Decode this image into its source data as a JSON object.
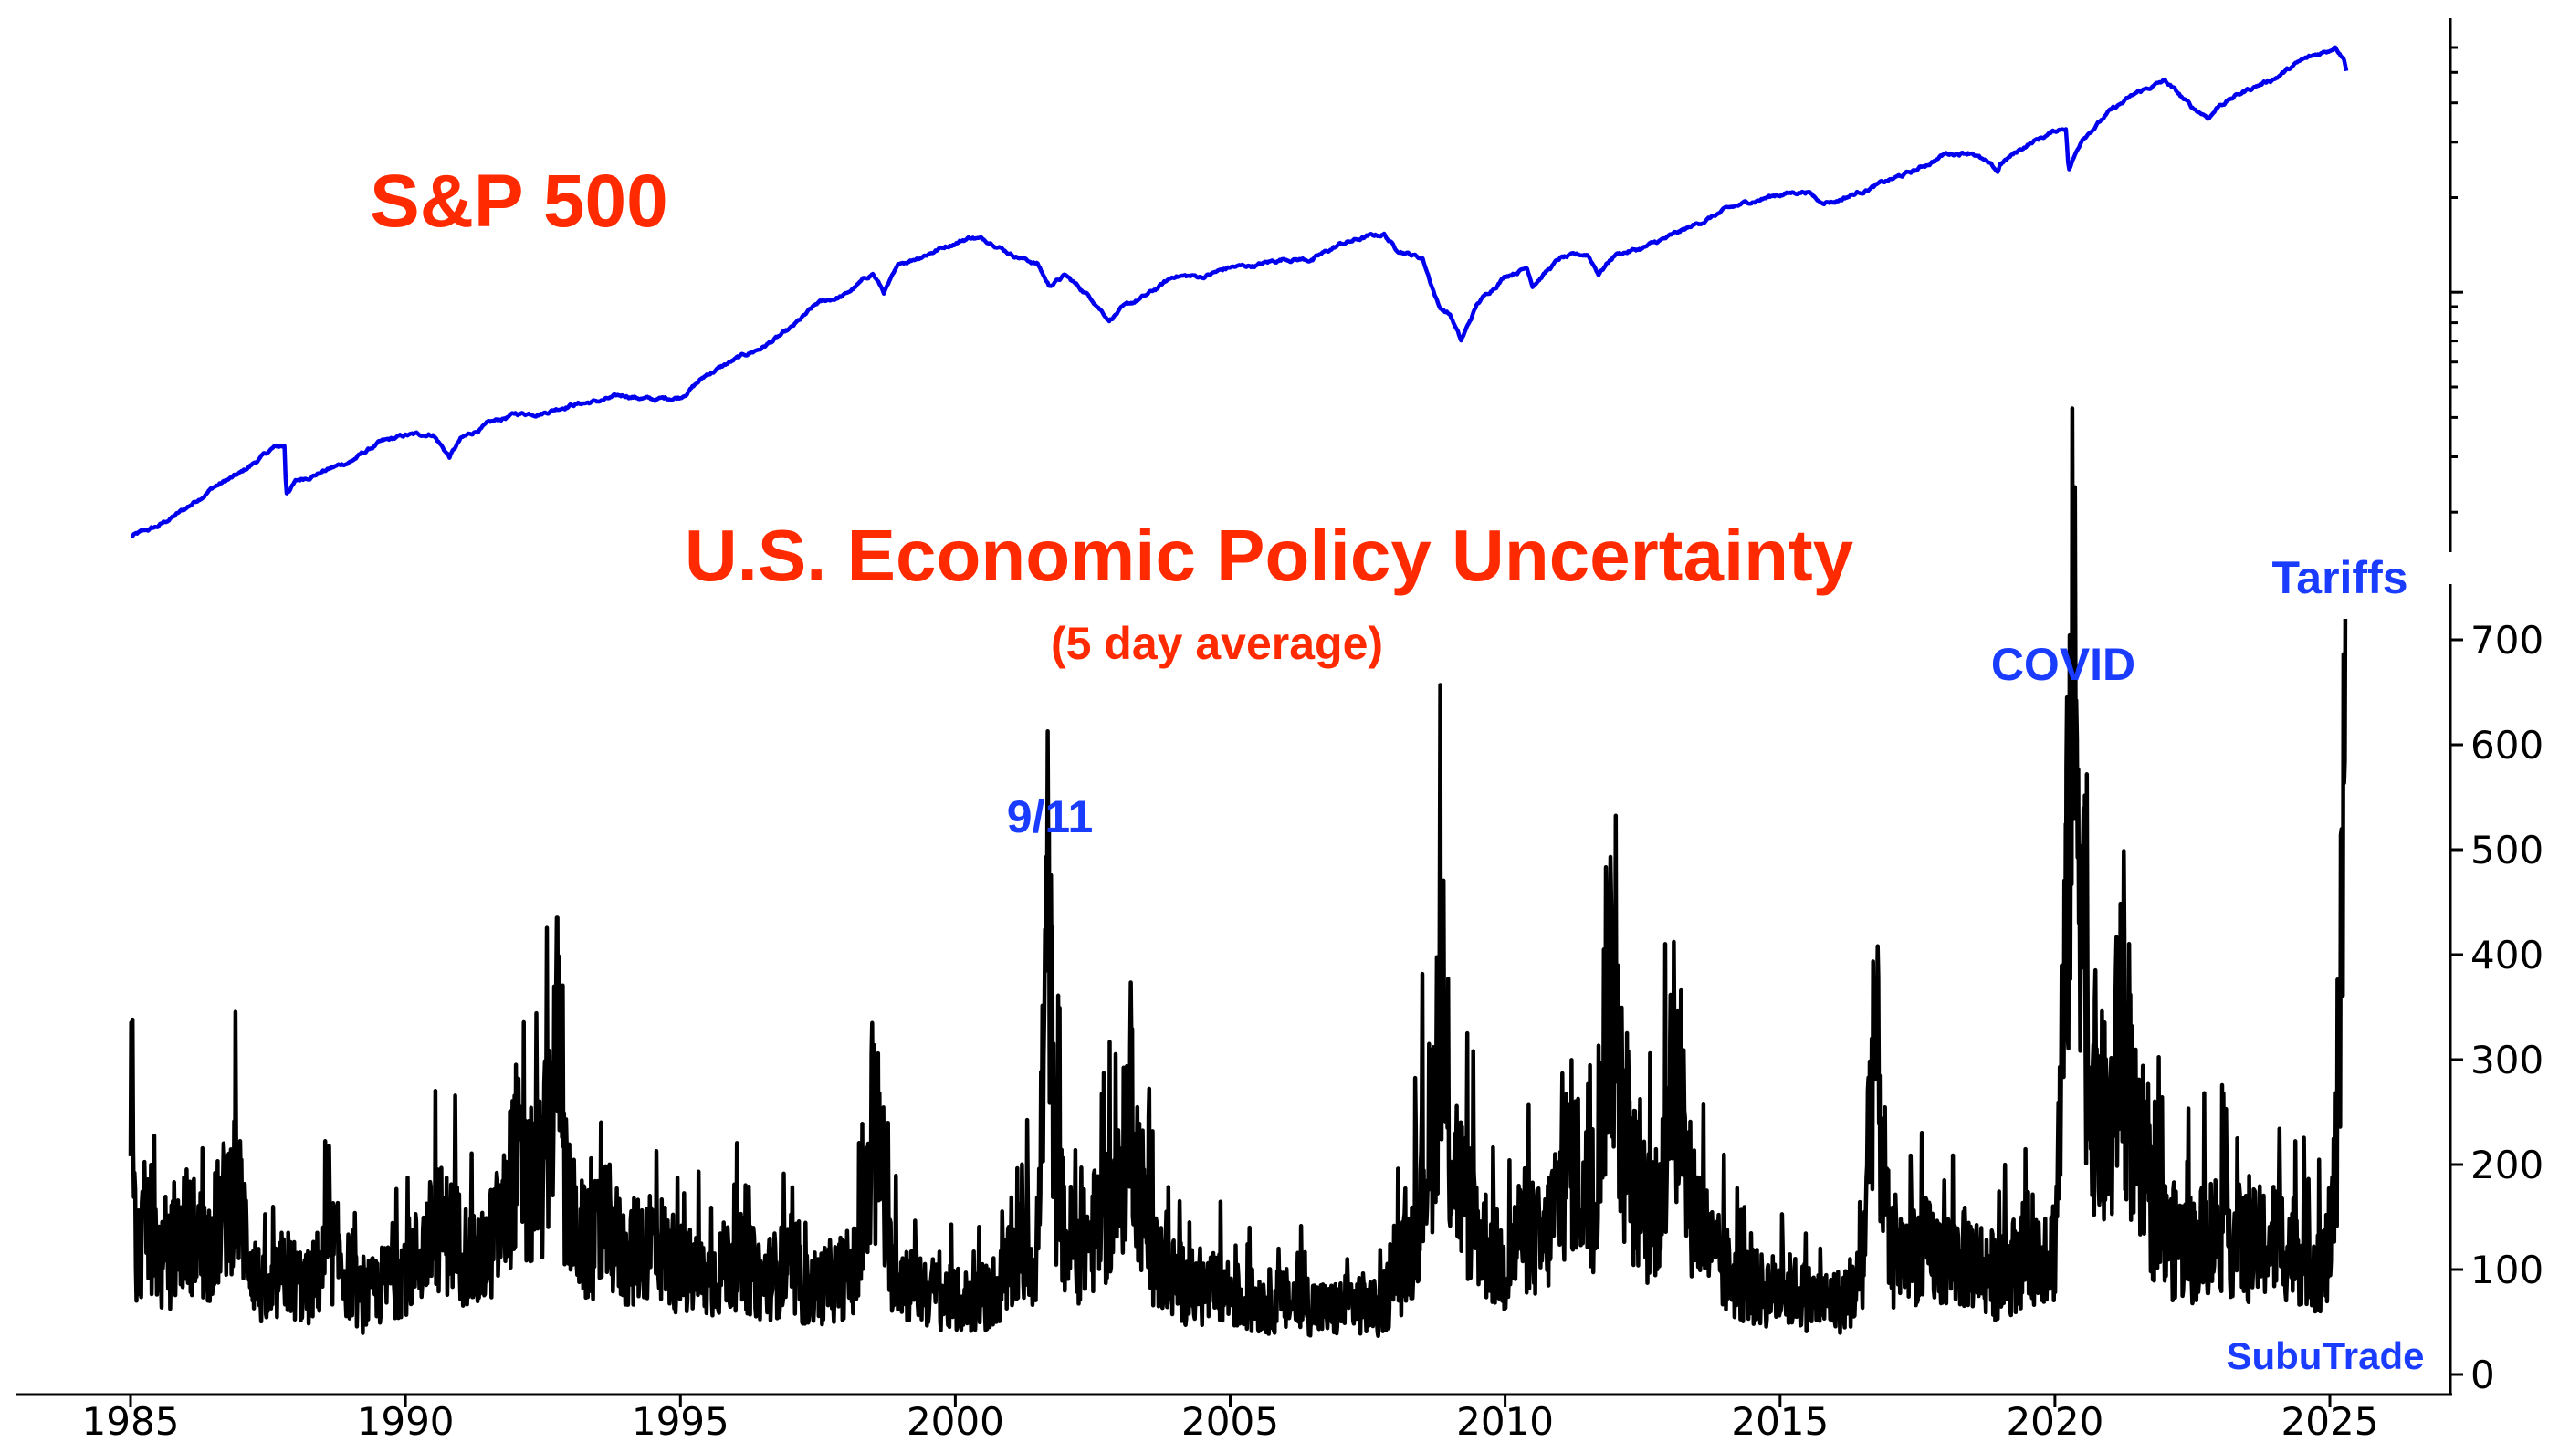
{
  "texts": {
    "sp_title": "S&P 500",
    "epu_title": "U.S. Economic Policy Uncertainty",
    "epu_subtitle": "(5 day average)",
    "annot_911": "9/11",
    "annot_covid": "COVID",
    "annot_tariffs": "Tariffs",
    "watermark": "SubuTrade"
  },
  "colors": {
    "title_red": "#ff2a00",
    "annotation_blue": "#1a3cff",
    "sp_line": "#0000ee",
    "epu_line": "#000000"
  },
  "chart_data": [
    {
      "type": "line",
      "name": "S&P 500",
      "yscale": "log",
      "ylim": [
        165,
        6500
      ],
      "xlim": [
        1985,
        2027.2
      ],
      "grid": false,
      "x": [
        1985.0,
        1985.5,
        1986.0,
        1986.5,
        1987.0,
        1987.6,
        1987.8,
        1987.83,
        1988.0,
        1988.5,
        1989.0,
        1989.5,
        1990.0,
        1990.5,
        1990.8,
        1991.0,
        1991.5,
        1992.0,
        1992.5,
        1993.0,
        1993.5,
        1994.0,
        1994.5,
        1995.0,
        1995.5,
        1996.0,
        1996.5,
        1997.0,
        1997.5,
        1998.0,
        1998.5,
        1998.7,
        1999.0,
        1999.5,
        2000.0,
        2000.3,
        2000.7,
        2001.0,
        2001.5,
        2001.7,
        2002.0,
        2002.5,
        2002.8,
        2003.0,
        2003.5,
        2004.0,
        2004.5,
        2005.0,
        2005.5,
        2006.0,
        2006.5,
        2007.0,
        2007.5,
        2007.8,
        2008.0,
        2008.5,
        2008.8,
        2009.0,
        2009.2,
        2009.5,
        2010.0,
        2010.4,
        2010.5,
        2011.0,
        2011.5,
        2011.7,
        2012.0,
        2012.5,
        2013.0,
        2013.5,
        2014.0,
        2014.5,
        2015.0,
        2015.5,
        2015.7,
        2016.0,
        2016.5,
        2017.0,
        2017.5,
        2018.0,
        2018.5,
        2018.97,
        2019.0,
        2019.5,
        2020.0,
        2020.2,
        2020.25,
        2020.5,
        2021.0,
        2021.5,
        2022.0,
        2022.5,
        2022.8,
        2023.0,
        2023.5,
        2024.0,
        2024.5,
        2025.0,
        2025.1,
        2025.25,
        2025.3
      ],
      "values": [
        167,
        180,
        205,
        240,
        265,
        320,
        325,
        230,
        250,
        270,
        290,
        330,
        350,
        355,
        300,
        340,
        380,
        410,
        415,
        440,
        450,
        470,
        455,
        465,
        550,
        610,
        670,
        760,
        920,
        980,
        1150,
        1000,
        1230,
        1330,
        1440,
        1500,
        1440,
        1330,
        1230,
        1050,
        1130,
        950,
        820,
        880,
        980,
        1130,
        1120,
        1200,
        1220,
        1280,
        1270,
        1420,
        1500,
        1530,
        1380,
        1280,
        900,
        850,
        700,
        920,
        1130,
        1200,
        1060,
        1280,
        1320,
        1150,
        1320,
        1380,
        1500,
        1650,
        1820,
        1950,
        2050,
        2100,
        1950,
        1950,
        2100,
        2270,
        2450,
        2750,
        2800,
        2400,
        2550,
        2950,
        3250,
        3350,
        2450,
        3100,
        3750,
        4300,
        4700,
        3850,
        3600,
        3950,
        4400,
        4800,
        5450,
        5900,
        6100,
        5600,
        5150
      ],
      "tick_labels_shown": false
    },
    {
      "type": "line",
      "name": "U.S. Economic Policy Uncertainty (5 day average)",
      "xlabel": "",
      "ylabel": "",
      "ylim": [
        0,
        760
      ],
      "xlim": [
        1985,
        2027.2
      ],
      "grid": false,
      "x_ticks": [
        "1985",
        "1990",
        "1995",
        "2000",
        "2005",
        "2010",
        "2015",
        "2020",
        "2025"
      ],
      "y_ticks": [
        "0",
        "100",
        "200",
        "300",
        "400",
        "500",
        "600",
        "700"
      ],
      "x": [
        1985.0,
        1985.1,
        1985.3,
        1985.6,
        1986.0,
        1986.4,
        1986.9,
        1987.3,
        1987.5,
        1987.8,
        1988.2,
        1988.7,
        1989.2,
        1989.7,
        1990.2,
        1990.6,
        1990.9,
        1991.3,
        1991.8,
        1992.0,
        1992.2,
        1992.5,
        1992.8,
        1992.85,
        1993.0,
        1993.3,
        1993.7,
        1994.0,
        1994.5,
        1995.0,
        1995.5,
        1996.0,
        1996.5,
        1996.9,
        1997.3,
        1997.8,
        1998.2,
        1998.6,
        1998.8,
        1999.1,
        1999.5,
        2000.0,
        2000.5,
        2000.9,
        2001.2,
        2001.5,
        2001.7,
        2001.8,
        2002.0,
        2002.3,
        2002.7,
        2003.0,
        2003.2,
        2003.3,
        2003.6,
        2004.0,
        2004.4,
        2004.9,
        2005.3,
        2005.8,
        2006.3,
        2006.8,
        2007.3,
        2007.7,
        2008.0,
        2008.3,
        2008.7,
        2008.8,
        2009.0,
        2009.3,
        2009.7,
        2010.0,
        2010.3,
        2010.7,
        2010.9,
        2011.2,
        2011.6,
        2011.9,
        2012.2,
        2012.6,
        2012.9,
        2013.0,
        2013.3,
        2013.8,
        2014.2,
        2014.7,
        2015.2,
        2015.7,
        2016.1,
        2016.5,
        2016.7,
        2017.0,
        2017.5,
        2018.0,
        2018.5,
        2019.0,
        2019.5,
        2020.0,
        2020.2,
        2020.3,
        2020.4,
        2020.5,
        2020.6,
        2020.8,
        2021.0,
        2021.2,
        2021.5,
        2022.0,
        2022.5,
        2023.0,
        2023.5,
        2024.0,
        2024.4,
        2024.7,
        2024.9,
        2025.05,
        2025.15,
        2025.25,
        2025.28
      ],
      "values": [
        270,
        110,
        150,
        100,
        140,
        120,
        180,
        90,
        70,
        100,
        80,
        120,
        70,
        90,
        110,
        140,
        130,
        100,
        150,
        210,
        170,
        190,
        330,
        190,
        150,
        120,
        140,
        110,
        130,
        100,
        90,
        110,
        90,
        100,
        80,
        90,
        100,
        220,
        110,
        90,
        80,
        70,
        70,
        90,
        120,
        110,
        480,
        200,
        130,
        120,
        150,
        170,
        280,
        200,
        110,
        90,
        80,
        80,
        70,
        70,
        70,
        60,
        70,
        60,
        90,
        120,
        250,
        330,
        220,
        160,
        120,
        100,
        140,
        120,
        160,
        210,
        150,
        390,
        200,
        150,
        180,
        320,
        180,
        110,
        90,
        80,
        80,
        70,
        70,
        90,
        340,
        110,
        120,
        110,
        110,
        90,
        120,
        120,
        400,
        650,
        600,
        500,
        300,
        250,
        220,
        340,
        200,
        130,
        120,
        140,
        120,
        130,
        120,
        110,
        100,
        140,
        280,
        600,
        720
      ]
    }
  ]
}
